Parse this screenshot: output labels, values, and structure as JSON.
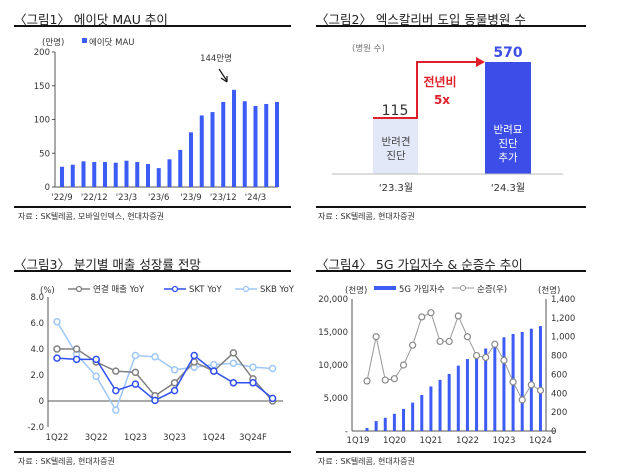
{
  "figures": [
    {
      "title": "〈그림1〉 에이닷 MAU 추이",
      "source": "자료 : SK텔레콤, 모바일인덱스, 현대차증권"
    },
    {
      "title": "〈그림2〉 엑스칼리버 도입 동물병원 수",
      "source": "자료 : SK텔레콤, 현대차증권"
    },
    {
      "title": "〈그림3〉 분기별 매출 성장률 전망",
      "source": "자료 : SK텔레콤, 현대차증권"
    },
    {
      "title": "〈그림4〉 5G 가입자수 & 순증수 추이",
      "source": "자료 : SK텔레콤, 현대차증권"
    }
  ],
  "chart_data": [
    {
      "type": "bar",
      "unit": "(만명)",
      "series": [
        {
          "name": "에이닷 MAU",
          "values": [
            30,
            33,
            38,
            37,
            37,
            36,
            39,
            37,
            34,
            28,
            41,
            55,
            81,
            106,
            111,
            126,
            144,
            127,
            120,
            123,
            126
          ],
          "color": "#3d5cf5"
        }
      ],
      "tick_labels": [
        "'22/9",
        "'22/12",
        "'23/3",
        "'23/6",
        "'23/9",
        "'23/12",
        "'24/3"
      ],
      "yticks": [
        "0",
        "50",
        "100",
        "150",
        "200"
      ],
      "ylim": [
        0,
        200
      ],
      "annotation": "144만명"
    },
    {
      "type": "bar",
      "unit": "(병원 수)",
      "categories": [
        "'23.3월",
        "'24.3월"
      ],
      "values": [
        115,
        570
      ],
      "value_labels": [
        "115",
        "570"
      ],
      "bar_texts": [
        [
          "반려견",
          "진단"
        ],
        [
          "반려묘",
          "진단",
          "추가"
        ]
      ],
      "growth_label": [
        "전년비",
        "5x"
      ],
      "colors": [
        "#e3e8f8",
        "#3d4ee8",
        "#e0202a"
      ]
    },
    {
      "type": "line",
      "unit": "(%)",
      "categories": [
        "1Q22",
        "2Q22",
        "3Q22",
        "4Q22",
        "1Q23",
        "2Q23",
        "3Q23",
        "4Q23",
        "1Q24",
        "2Q24",
        "3Q24F",
        "4Q24F"
      ],
      "tick_labels": [
        "1Q22",
        "3Q22",
        "1Q23",
        "3Q23",
        "1Q24",
        "3Q24F"
      ],
      "yticks": [
        "-2.0",
        "0",
        "2.0",
        "4.0",
        "6.0",
        "8.0"
      ],
      "ylim": [
        -2,
        8
      ],
      "series": [
        {
          "name": "연결 매출 YoY",
          "color": "#808080",
          "values": [
            4.0,
            4.0,
            3.0,
            2.3,
            2.2,
            0.4,
            1.4,
            3.0,
            2.3,
            3.7,
            1.7,
            0.0
          ]
        },
        {
          "name": "SKT YoY",
          "color": "#2f4ff0",
          "values": [
            3.3,
            3.2,
            3.2,
            0.8,
            1.3,
            0.05,
            0.8,
            3.5,
            2.3,
            1.4,
            1.4,
            0.2
          ]
        },
        {
          "name": "SKB YoY",
          "color": "#9ec7f7",
          "values": [
            6.1,
            3.6,
            1.9,
            -0.7,
            3.5,
            3.4,
            2.4,
            2.6,
            2.8,
            2.9,
            2.6,
            2.5
          ]
        }
      ]
    },
    {
      "type": "bar+line",
      "left_unit": "(천명)",
      "right_unit": "(천명)",
      "tick_labels": [
        "1Q19",
        "1Q20",
        "1Q21",
        "1Q22",
        "1Q23",
        "1Q24"
      ],
      "yticks_left": [
        "-",
        "5,000",
        "10,000",
        "15,000",
        "20,000"
      ],
      "yticks_right": [
        "0",
        "200",
        "400",
        "600",
        "800",
        "1,000",
        "1,200",
        "1,400"
      ],
      "ylim_left": [
        0,
        20000
      ],
      "ylim_right": [
        0,
        1400
      ],
      "series": [
        {
          "name": "5G 가입자수",
          "type": "bar",
          "color": "#3d5cf5",
          "values": [
            450,
            1500,
            2000,
            2600,
            3350,
            4300,
            5450,
            6750,
            7750,
            8650,
            9900,
            10900,
            11700,
            12500,
            13400,
            14200,
            14700,
            15000,
            15500,
            15900
          ]
        },
        {
          "name": "순증(우)",
          "type": "line",
          "color": "#999999",
          "values": [
            530,
            1000,
            540,
            555,
            700,
            910,
            1210,
            1255,
            950,
            950,
            1220,
            1000,
            800,
            780,
            920,
            750,
            520,
            330,
            490,
            430
          ]
        }
      ]
    }
  ]
}
